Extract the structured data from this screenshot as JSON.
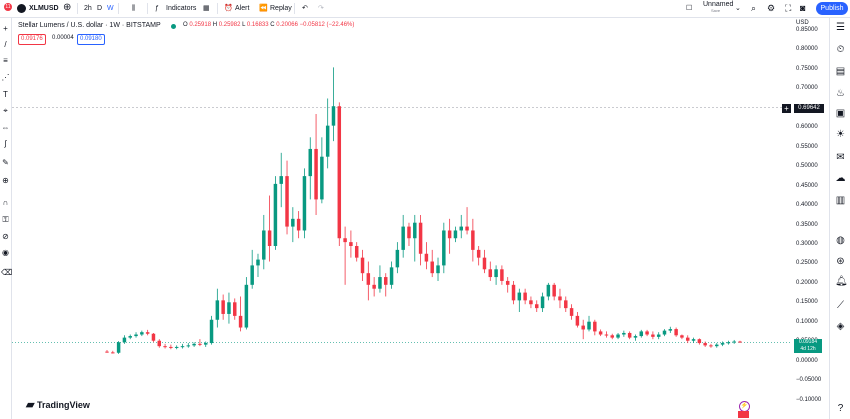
{
  "topbar": {
    "badge": "11",
    "symbol": "XLMUSD",
    "intervals": [
      "2h",
      "D",
      "W"
    ],
    "indicators_label": "Indicators",
    "alert_label": "Alert",
    "replay_label": "Replay",
    "layout_name": "Unnamed",
    "layout_sub": "Save",
    "publish_label": "Publish"
  },
  "legend": {
    "title": "Stellar Lumens / U.S. dollar · 1W · BITSTAMP",
    "o_key": "O",
    "o_val": "0.25918",
    "h_key": "H",
    "h_val": "0.25982",
    "l_key": "L",
    "l_val": "0.16833",
    "c_key": "C",
    "c_val": "0.20066",
    "chg": "−0.05812 (−22.46%)",
    "sell_price": "0.09176",
    "spread": "0.00004",
    "buy_price": "0.09180"
  },
  "price_scale": {
    "currency": "USD",
    "ticks": [
      "0.85000",
      "0.80000",
      "0.75000",
      "0.70000",
      "0.65000",
      "0.60000",
      "0.55000",
      "0.50000",
      "0.45000",
      "0.40000",
      "0.35000",
      "0.30000",
      "0.25000",
      "0.20000",
      "0.15000",
      "0.10000",
      "0.05000",
      "0.00000",
      "−0.05000",
      "−0.10000"
    ],
    "crosshair_value": "0.69642",
    "current_value": "0.09184",
    "countdown": "4d 12h"
  },
  "branding": {
    "logo_text": "TradingView"
  },
  "colors": {
    "up": "#089981",
    "down": "#f23645",
    "accent": "#2962ff"
  },
  "chart_data": {
    "type": "candlestick",
    "ylim": [
      -0.1,
      0.88
    ],
    "candles": [
      [
        0.068,
        0.072,
        0.065,
        0.066
      ],
      [
        0.066,
        0.07,
        0.063,
        0.065
      ],
      [
        0.065,
        0.095,
        0.062,
        0.092
      ],
      [
        0.092,
        0.11,
        0.088,
        0.104
      ],
      [
        0.104,
        0.112,
        0.1,
        0.108
      ],
      [
        0.108,
        0.118,
        0.104,
        0.112
      ],
      [
        0.112,
        0.122,
        0.108,
        0.118
      ],
      [
        0.118,
        0.124,
        0.11,
        0.114
      ],
      [
        0.114,
        0.116,
        0.092,
        0.096
      ],
      [
        0.096,
        0.1,
        0.078,
        0.082
      ],
      [
        0.082,
        0.088,
        0.076,
        0.08
      ],
      [
        0.08,
        0.086,
        0.074,
        0.078
      ],
      [
        0.078,
        0.084,
        0.074,
        0.08
      ],
      [
        0.08,
        0.088,
        0.076,
        0.082
      ],
      [
        0.082,
        0.09,
        0.078,
        0.084
      ],
      [
        0.084,
        0.092,
        0.08,
        0.088
      ],
      [
        0.088,
        0.1,
        0.082,
        0.086
      ],
      [
        0.086,
        0.094,
        0.08,
        0.09
      ],
      [
        0.09,
        0.16,
        0.086,
        0.15
      ],
      [
        0.15,
        0.23,
        0.13,
        0.2
      ],
      [
        0.2,
        0.215,
        0.15,
        0.165
      ],
      [
        0.165,
        0.22,
        0.14,
        0.195
      ],
      [
        0.195,
        0.205,
        0.15,
        0.16
      ],
      [
        0.16,
        0.21,
        0.12,
        0.13
      ],
      [
        0.13,
        0.26,
        0.125,
        0.24
      ],
      [
        0.24,
        0.33,
        0.23,
        0.29
      ],
      [
        0.29,
        0.32,
        0.26,
        0.305
      ],
      [
        0.305,
        0.42,
        0.28,
        0.38
      ],
      [
        0.38,
        0.47,
        0.3,
        0.34
      ],
      [
        0.34,
        0.52,
        0.33,
        0.5
      ],
      [
        0.5,
        0.58,
        0.44,
        0.52
      ],
      [
        0.52,
        0.56,
        0.37,
        0.39
      ],
      [
        0.39,
        0.44,
        0.35,
        0.41
      ],
      [
        0.41,
        0.43,
        0.36,
        0.38
      ],
      [
        0.38,
        0.54,
        0.36,
        0.52
      ],
      [
        0.52,
        0.62,
        0.46,
        0.59
      ],
      [
        0.59,
        0.68,
        0.42,
        0.46
      ],
      [
        0.46,
        0.62,
        0.45,
        0.57
      ],
      [
        0.57,
        0.72,
        0.54,
        0.65
      ],
      [
        0.65,
        0.8,
        0.61,
        0.7
      ],
      [
        0.7,
        0.71,
        0.34,
        0.36
      ],
      [
        0.36,
        0.39,
        0.24,
        0.35
      ],
      [
        0.35,
        0.38,
        0.31,
        0.34
      ],
      [
        0.34,
        0.35,
        0.3,
        0.31
      ],
      [
        0.31,
        0.33,
        0.25,
        0.27
      ],
      [
        0.27,
        0.3,
        0.2,
        0.24
      ],
      [
        0.24,
        0.26,
        0.21,
        0.23
      ],
      [
        0.23,
        0.29,
        0.22,
        0.26
      ],
      [
        0.26,
        0.27,
        0.21,
        0.24
      ],
      [
        0.24,
        0.3,
        0.23,
        0.285
      ],
      [
        0.285,
        0.35,
        0.27,
        0.33
      ],
      [
        0.33,
        0.42,
        0.31,
        0.39
      ],
      [
        0.39,
        0.4,
        0.34,
        0.36
      ],
      [
        0.36,
        0.42,
        0.3,
        0.4
      ],
      [
        0.4,
        0.42,
        0.29,
        0.32
      ],
      [
        0.32,
        0.35,
        0.28,
        0.3
      ],
      [
        0.3,
        0.33,
        0.26,
        0.27
      ],
      [
        0.27,
        0.31,
        0.25,
        0.29
      ],
      [
        0.29,
        0.4,
        0.27,
        0.38
      ],
      [
        0.38,
        0.41,
        0.32,
        0.36
      ],
      [
        0.36,
        0.39,
        0.35,
        0.38
      ],
      [
        0.38,
        0.42,
        0.36,
        0.39
      ],
      [
        0.39,
        0.44,
        0.37,
        0.38
      ],
      [
        0.38,
        0.41,
        0.3,
        0.33
      ],
      [
        0.33,
        0.34,
        0.29,
        0.31
      ],
      [
        0.31,
        0.33,
        0.27,
        0.28
      ],
      [
        0.28,
        0.3,
        0.25,
        0.26
      ],
      [
        0.26,
        0.29,
        0.24,
        0.28
      ],
      [
        0.28,
        0.29,
        0.24,
        0.25
      ],
      [
        0.25,
        0.26,
        0.22,
        0.24
      ],
      [
        0.24,
        0.25,
        0.19,
        0.2
      ],
      [
        0.2,
        0.23,
        0.17,
        0.22
      ],
      [
        0.22,
        0.23,
        0.19,
        0.2
      ],
      [
        0.2,
        0.21,
        0.18,
        0.19
      ],
      [
        0.19,
        0.2,
        0.17,
        0.18
      ],
      [
        0.18,
        0.22,
        0.17,
        0.21
      ],
      [
        0.21,
        0.245,
        0.2,
        0.24
      ],
      [
        0.24,
        0.245,
        0.2,
        0.21
      ],
      [
        0.21,
        0.23,
        0.18,
        0.2
      ],
      [
        0.2,
        0.21,
        0.17,
        0.18
      ],
      [
        0.18,
        0.19,
        0.15,
        0.16
      ],
      [
        0.16,
        0.17,
        0.13,
        0.135
      ],
      [
        0.135,
        0.15,
        0.1,
        0.125
      ],
      [
        0.125,
        0.16,
        0.12,
        0.145
      ],
      [
        0.145,
        0.15,
        0.11,
        0.12
      ],
      [
        0.12,
        0.125,
        0.108,
        0.112
      ],
      [
        0.112,
        0.12,
        0.104,
        0.11
      ],
      [
        0.11,
        0.114,
        0.1,
        0.104
      ],
      [
        0.104,
        0.116,
        0.1,
        0.112
      ],
      [
        0.112,
        0.122,
        0.106,
        0.116
      ],
      [
        0.116,
        0.12,
        0.1,
        0.104
      ],
      [
        0.104,
        0.112,
        0.096,
        0.108
      ],
      [
        0.108,
        0.124,
        0.104,
        0.12
      ],
      [
        0.12,
        0.124,
        0.108,
        0.112
      ],
      [
        0.112,
        0.12,
        0.1,
        0.106
      ],
      [
        0.106,
        0.118,
        0.1,
        0.112
      ],
      [
        0.112,
        0.126,
        0.108,
        0.122
      ],
      [
        0.122,
        0.132,
        0.116,
        0.126
      ],
      [
        0.126,
        0.13,
        0.106,
        0.11
      ],
      [
        0.11,
        0.112,
        0.1,
        0.104
      ],
      [
        0.104,
        0.11,
        0.09,
        0.096
      ],
      [
        0.096,
        0.104,
        0.09,
        0.1
      ],
      [
        0.1,
        0.102,
        0.086,
        0.09
      ],
      [
        0.09,
        0.094,
        0.08,
        0.084
      ],
      [
        0.084,
        0.088,
        0.078,
        0.082
      ],
      [
        0.082,
        0.09,
        0.078,
        0.086
      ],
      [
        0.086,
        0.094,
        0.082,
        0.09
      ],
      [
        0.09,
        0.096,
        0.086,
        0.092
      ],
      [
        0.092,
        0.098,
        0.088,
        0.094
      ],
      [
        0.094,
        0.096,
        0.09,
        0.092
      ]
    ]
  }
}
